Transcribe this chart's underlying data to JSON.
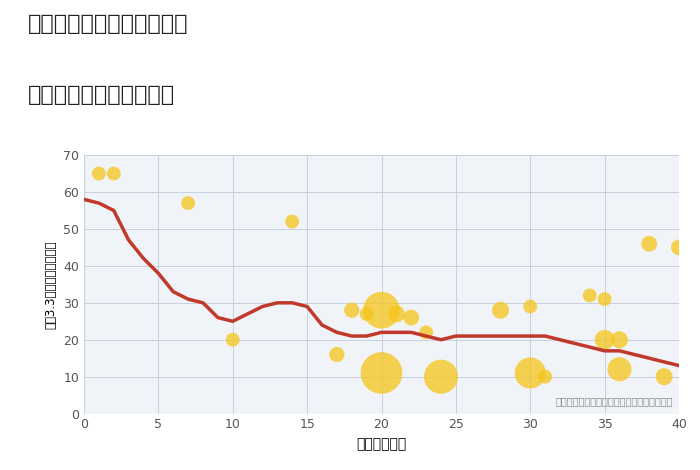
{
  "title_line1": "兵庫県豊岡市日高町羽尻の",
  "title_line2": "築年数別中古戸建て価格",
  "xlabel": "築年数（年）",
  "ylabel": "坪（3.3㎡）単価（万円）",
  "background_color": "#ffffff",
  "plot_bg_color": "#f0f3f8",
  "grid_color": "#c8d0e0",
  "xlim": [
    0,
    40
  ],
  "ylim": [
    0,
    70
  ],
  "xticks": [
    0,
    5,
    10,
    15,
    20,
    25,
    30,
    35,
    40
  ],
  "yticks": [
    0,
    10,
    20,
    30,
    40,
    50,
    60,
    70
  ],
  "annotation": "円の大きさは、取引のあった物件面積を示す",
  "line_color": "#c0392b",
  "line_x": [
    0,
    1,
    2,
    3,
    4,
    5,
    6,
    7,
    8,
    9,
    10,
    11,
    12,
    13,
    14,
    15,
    16,
    17,
    18,
    19,
    20,
    21,
    22,
    23,
    24,
    25,
    26,
    27,
    28,
    29,
    30,
    31,
    32,
    33,
    34,
    35,
    36,
    37,
    38,
    39,
    40
  ],
  "line_y": [
    58,
    57,
    55,
    47,
    42,
    38,
    33,
    31,
    30,
    26,
    25,
    27,
    29,
    30,
    30,
    29,
    24,
    22,
    21,
    21,
    22,
    22,
    22,
    21,
    20,
    21,
    21,
    21,
    21,
    21,
    21,
    21,
    20,
    19,
    18,
    17,
    17,
    16,
    15,
    14,
    13
  ],
  "scatter_x": [
    1,
    2,
    7,
    10,
    14,
    17,
    18,
    19,
    20,
    20,
    21,
    22,
    23,
    24,
    28,
    30,
    30,
    31,
    34,
    35,
    35,
    36,
    36,
    38,
    39,
    40
  ],
  "scatter_y": [
    65,
    65,
    57,
    20,
    52,
    16,
    28,
    27,
    28,
    11,
    27,
    26,
    22,
    10,
    28,
    11,
    29,
    10,
    32,
    20,
    31,
    12,
    20,
    46,
    10,
    45
  ],
  "scatter_s": [
    100,
    100,
    100,
    100,
    100,
    120,
    120,
    100,
    700,
    900,
    150,
    130,
    100,
    600,
    150,
    500,
    100,
    100,
    100,
    200,
    100,
    300,
    150,
    130,
    150,
    130
  ],
  "scatter_color": "#f5c518",
  "scatter_alpha": 0.75
}
